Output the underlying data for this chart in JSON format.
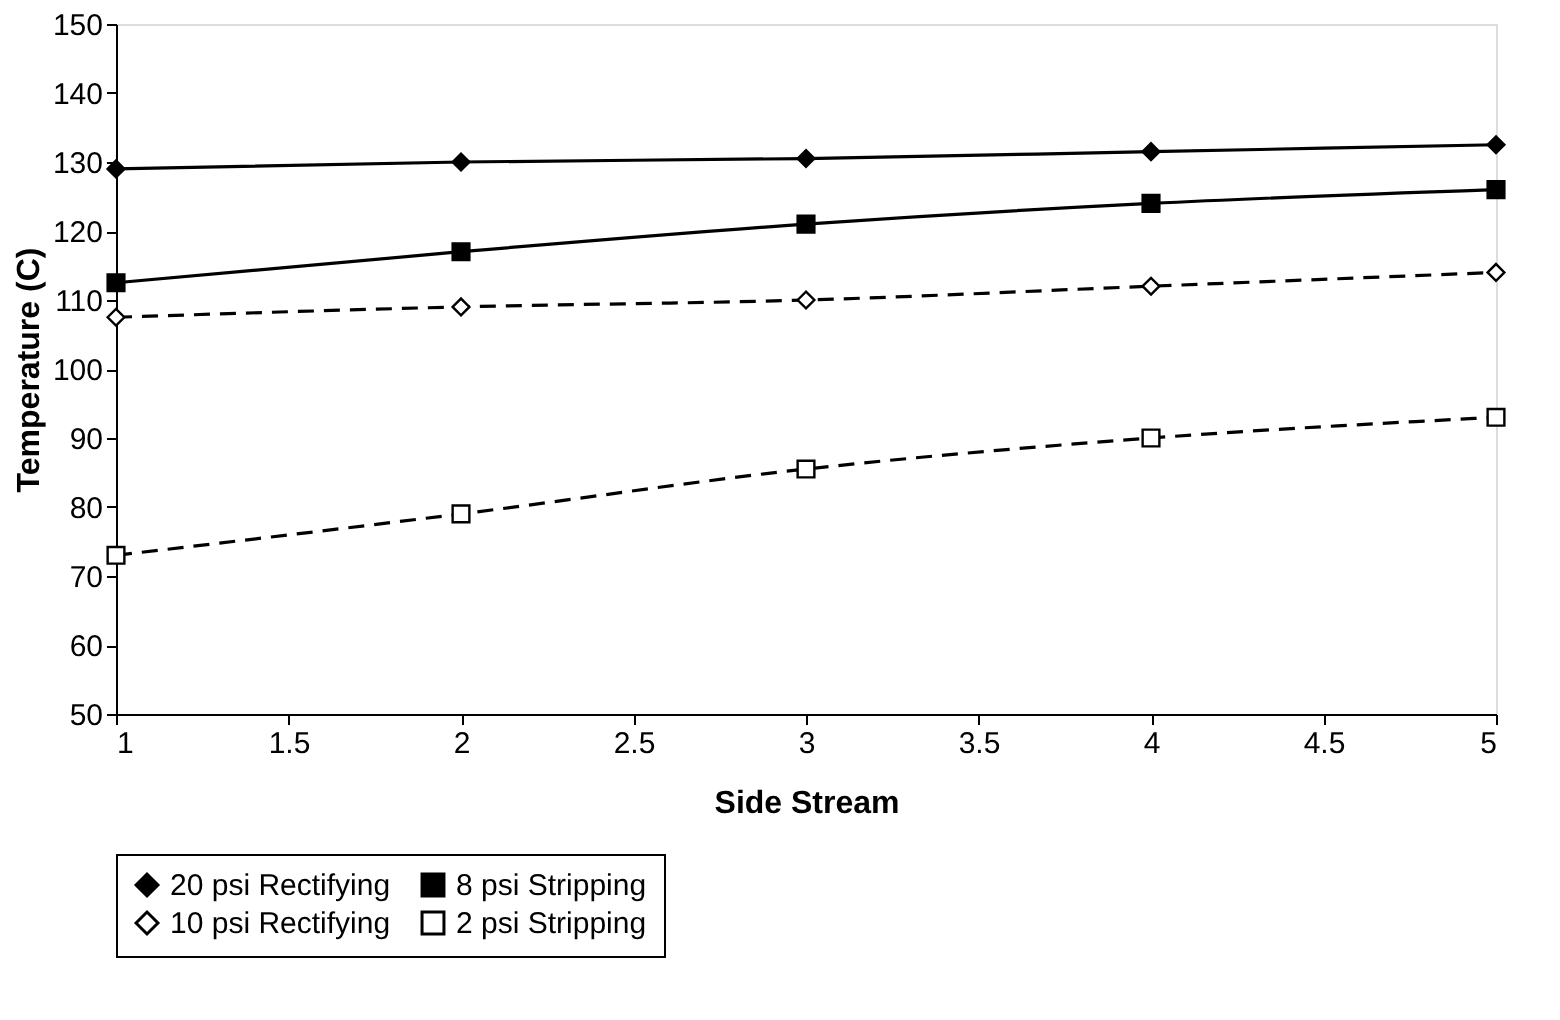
{
  "chart_data": {
    "type": "line",
    "xlabel": "Side Stream",
    "ylabel": "Temperature (C)",
    "x": [
      1,
      2,
      3,
      4,
      5
    ],
    "xlim": [
      1,
      5
    ],
    "xticks": [
      1,
      1.5,
      2,
      2.5,
      3,
      3.5,
      4,
      4.5,
      5
    ],
    "ylim": [
      50,
      150
    ],
    "yticks": [
      50,
      60,
      70,
      80,
      90,
      100,
      110,
      120,
      130,
      140,
      150
    ],
    "grid": false,
    "legend": "bottom",
    "series": [
      {
        "name": "20 psi Rectifying",
        "color": "#000000",
        "values": [
          129,
          130,
          130.5,
          131.5,
          132.5
        ],
        "marker": "diamond",
        "line_style": "solid"
      },
      {
        "name": "8 psi Stripping",
        "color": "#000000",
        "values": [
          112.5,
          117,
          121,
          124,
          126
        ],
        "marker": "square",
        "line_style": "solid"
      },
      {
        "name": "10 psi Rectifying",
        "color": "#000000",
        "values": [
          107.5,
          109,
          110,
          112,
          114
        ],
        "marker": "diamond",
        "line_style": "dashed"
      },
      {
        "name": "2 psi Stripping",
        "color": "#000000",
        "values": [
          73,
          79,
          85.5,
          90,
          93
        ],
        "marker": "square",
        "line_style": "dashed"
      }
    ]
  }
}
